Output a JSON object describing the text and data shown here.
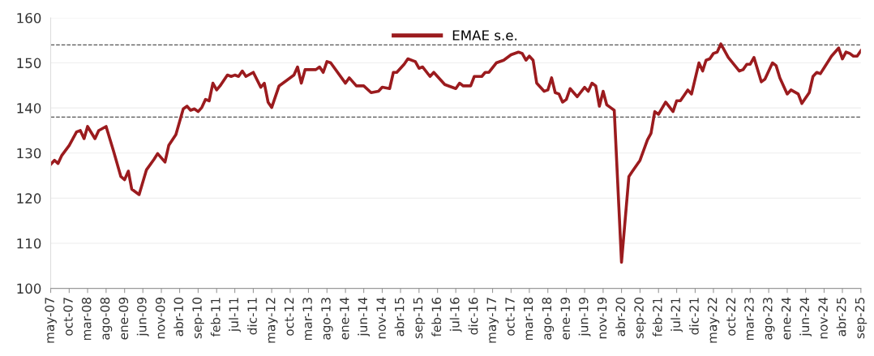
{
  "chart_data": {
    "type": "line",
    "xlim": [
      "2007-05",
      "2025-09"
    ],
    "xticks": [
      {
        "value": "2007-05",
        "label": "may-07"
      },
      {
        "value": "2007-10",
        "label": "oct-07"
      },
      {
        "value": "2008-03",
        "label": "mar-08"
      },
      {
        "value": "2008-08",
        "label": "ago-08"
      },
      {
        "value": "2009-01",
        "label": "ene-09"
      },
      {
        "value": "2009-06",
        "label": "jun-09"
      },
      {
        "value": "2009-11",
        "label": "nov-09"
      },
      {
        "value": "2010-04",
        "label": "abr-10"
      },
      {
        "value": "2010-09",
        "label": "sep-10"
      },
      {
        "value": "2011-02",
        "label": "feb-11"
      },
      {
        "value": "2011-07",
        "label": "jul-11"
      },
      {
        "value": "2011-12",
        "label": "dic-11"
      },
      {
        "value": "2012-05",
        "label": "may-12"
      },
      {
        "value": "2012-10",
        "label": "oct-12"
      },
      {
        "value": "2013-03",
        "label": "mar-13"
      },
      {
        "value": "2013-08",
        "label": "ago-13"
      },
      {
        "value": "2014-01",
        "label": "ene-14"
      },
      {
        "value": "2014-06",
        "label": "jun-14"
      },
      {
        "value": "2014-11",
        "label": "nov-14"
      },
      {
        "value": "2015-04",
        "label": "abr-15"
      },
      {
        "value": "2015-09",
        "label": "sep-15"
      },
      {
        "value": "2016-02",
        "label": "feb-16"
      },
      {
        "value": "2016-07",
        "label": "jul-16"
      },
      {
        "value": "2016-12",
        "label": "dic-16"
      },
      {
        "value": "2017-05",
        "label": "may-17"
      },
      {
        "value": "2017-10",
        "label": "oct-17"
      },
      {
        "value": "2018-03",
        "label": "mar-18"
      },
      {
        "value": "2018-08",
        "label": "ago-18"
      },
      {
        "value": "2019-01",
        "label": "ene-19"
      },
      {
        "value": "2019-06",
        "label": "jun-19"
      },
      {
        "value": "2019-11",
        "label": "nov-19"
      },
      {
        "value": "2020-04",
        "label": "abr-20"
      },
      {
        "value": "2020-09",
        "label": "sep-20"
      },
      {
        "value": "2021-02",
        "label": "feb-21"
      },
      {
        "value": "2021-07",
        "label": "jul-21"
      },
      {
        "value": "2021-12",
        "label": "dic-21"
      },
      {
        "value": "2022-05",
        "label": "may-22"
      },
      {
        "value": "2022-10",
        "label": "oct-22"
      },
      {
        "value": "2023-03",
        "label": "mar-23"
      },
      {
        "value": "2023-08",
        "label": "ago-23"
      },
      {
        "value": "2024-01",
        "label": "ene-24"
      },
      {
        "value": "2024-06",
        "label": "jun-24"
      },
      {
        "value": "2024-11",
        "label": "nov-24"
      },
      {
        "value": "2025-04",
        "label": "abr-25"
      },
      {
        "value": "2025-09",
        "label": "sep-25"
      }
    ],
    "ylim": [
      100,
      160
    ],
    "yticks": [
      100,
      110,
      120,
      130,
      140,
      150,
      160
    ],
    "grid": "y",
    "legend": "top",
    "line_style": "solid",
    "ref_lines": [
      {
        "axis": "y",
        "value": 154,
        "color": "#555555",
        "line_style": "dashed"
      },
      {
        "axis": "y",
        "value": 138,
        "color": "#555555",
        "line_style": "dashed"
      }
    ],
    "series": [
      {
        "name": "EMAE s.e.",
        "color": "#9b1b1e",
        "x": [
          "2007-05",
          "2007-06",
          "2007-07",
          "2007-08",
          "2007-10",
          "2007-12",
          "2008-01",
          "2008-02",
          "2008-03",
          "2008-05",
          "2008-06",
          "2008-08",
          "2008-10",
          "2008-12",
          "2009-01",
          "2009-02",
          "2009-03",
          "2009-05",
          "2009-07",
          "2009-09",
          "2009-10",
          "2009-12",
          "2010-01",
          "2010-03",
          "2010-05",
          "2010-06",
          "2010-07",
          "2010-08",
          "2010-09",
          "2010-10",
          "2010-11",
          "2010-12",
          "2011-01",
          "2011-02",
          "2011-03",
          "2011-05",
          "2011-06",
          "2011-07",
          "2011-08",
          "2011-09",
          "2011-10",
          "2011-12",
          "2012-02",
          "2012-03",
          "2012-04",
          "2012-05",
          "2012-07",
          "2012-09",
          "2012-11",
          "2012-12",
          "2013-01",
          "2013-02",
          "2013-05",
          "2013-06",
          "2013-07",
          "2013-08",
          "2013-09",
          "2014-01",
          "2014-02",
          "2014-04",
          "2014-06",
          "2014-08",
          "2014-10",
          "2014-11",
          "2015-01",
          "2015-02",
          "2015-03",
          "2015-05",
          "2015-06",
          "2015-08",
          "2015-09",
          "2015-10",
          "2015-12",
          "2016-01",
          "2016-04",
          "2016-07",
          "2016-08",
          "2016-09",
          "2016-11",
          "2016-12",
          "2017-02",
          "2017-03",
          "2017-04",
          "2017-06",
          "2017-08",
          "2017-10",
          "2017-12",
          "2018-01",
          "2018-02",
          "2018-03",
          "2018-04",
          "2018-05",
          "2018-07",
          "2018-08",
          "2018-09",
          "2018-10",
          "2018-11",
          "2018-12",
          "2019-01",
          "2019-02",
          "2019-04",
          "2019-06",
          "2019-07",
          "2019-08",
          "2019-09",
          "2019-10",
          "2019-11",
          "2019-12",
          "2020-01",
          "2020-02",
          "2020-04",
          "2020-06",
          "2020-07",
          "2020-09",
          "2020-11",
          "2020-12",
          "2021-01",
          "2021-02",
          "2021-04",
          "2021-06",
          "2021-07",
          "2021-08",
          "2021-10",
          "2021-11",
          "2022-01",
          "2022-02",
          "2022-03",
          "2022-04",
          "2022-05",
          "2022-06",
          "2022-07",
          "2022-09",
          "2022-12",
          "2023-01",
          "2023-02",
          "2023-03",
          "2023-04",
          "2023-06",
          "2023-07",
          "2023-09",
          "2023-10",
          "2023-11",
          "2024-01",
          "2024-02",
          "2024-04",
          "2024-05",
          "2024-07",
          "2024-08",
          "2024-09",
          "2024-10",
          "2025-01",
          "2025-03",
          "2025-04",
          "2025-05",
          "2025-06",
          "2025-07",
          "2025-08",
          "2025-09"
        ],
        "values": [
          127.5,
          128.4,
          127.7,
          129.5,
          131.7,
          134.7,
          135,
          133.2,
          135.9,
          133.2,
          135,
          135.9,
          130.5,
          124.8,
          124.1,
          126,
          122,
          120.8,
          126.3,
          128.6,
          129.9,
          128,
          131.7,
          134.1,
          139.8,
          140.4,
          139.5,
          139.8,
          139.2,
          140.1,
          141.9,
          141.6,
          145.5,
          144,
          144.9,
          147.3,
          147,
          147.3,
          147,
          148.2,
          147,
          147.9,
          144.6,
          145.5,
          141.3,
          140.1,
          144.9,
          146.1,
          147.3,
          149.1,
          145.5,
          148.5,
          148.5,
          149.1,
          147.9,
          150.3,
          150,
          145.5,
          146.7,
          144.9,
          144.9,
          143.4,
          143.7,
          144.6,
          144.3,
          147.9,
          147.9,
          149.7,
          150.9,
          150.3,
          148.8,
          149.1,
          147,
          147.9,
          145.2,
          144.3,
          145.5,
          144.9,
          144.9,
          147,
          147,
          147.9,
          147.9,
          150,
          150.6,
          151.8,
          152.4,
          152.1,
          150.6,
          151.5,
          150.6,
          145.5,
          143.7,
          144,
          146.7,
          143.4,
          143.1,
          141.3,
          141.9,
          144.3,
          142.5,
          144.6,
          143.7,
          145.5,
          144.9,
          140.4,
          143.7,
          140.7,
          140.1,
          139.5,
          105.8,
          124.8,
          126,
          128.4,
          132.9,
          134.4,
          139.2,
          138.6,
          141.3,
          139.2,
          141.6,
          141.6,
          144,
          143.1,
          150,
          148.2,
          150.6,
          150.9,
          152.1,
          152.4,
          154.2,
          151.2,
          148.2,
          148.5,
          149.7,
          149.7,
          151.2,
          145.8,
          146.4,
          150,
          149.4,
          146.7,
          143.1,
          144,
          143.1,
          141,
          143.4,
          147,
          147.9,
          147.6,
          151.5,
          153.3,
          150.9,
          152.4,
          152.1,
          151.5,
          151.5,
          152.7
        ]
      }
    ]
  }
}
